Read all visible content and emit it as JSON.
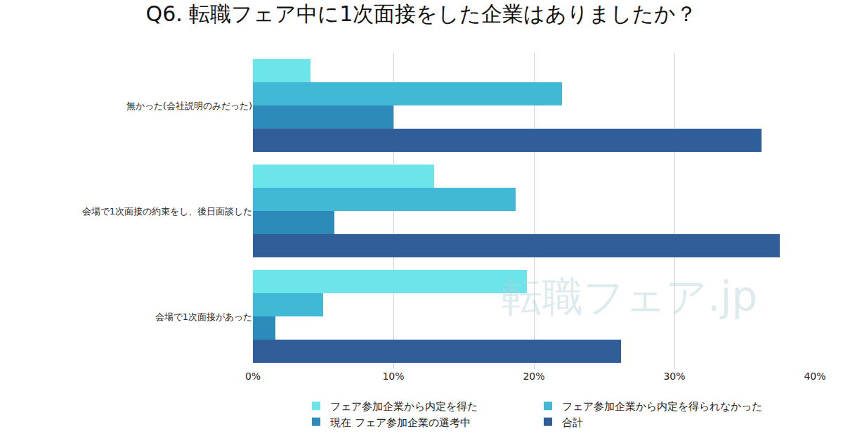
{
  "chart_data": {
    "type": "bar",
    "orientation": "horizontal",
    "title": "Q6. 転職フェア中に1次面接をした企業はありましたか？",
    "categories": [
      "無かった(会社説明のみだった)",
      "会場で1次面接の約束をし、後日面談した",
      "会場で1次面接があった"
    ],
    "series": [
      {
        "name": "フェア参加企業から内定を得た",
        "color": "#6be5e9",
        "values": [
          4.1,
          12.9,
          19.5
        ]
      },
      {
        "name": "フェア参加企業から内定を得られなかった",
        "color": "#41b8d6",
        "values": [
          22.0,
          18.7,
          5.0
        ]
      },
      {
        "name": "現在 フェア参加企業の選考中",
        "color": "#2d8bba",
        "values": [
          10.0,
          5.8,
          1.6
        ]
      },
      {
        "name": "合計",
        "color": "#2f5e98",
        "values": [
          36.2,
          37.5,
          26.2
        ]
      }
    ],
    "xlim": [
      0,
      40
    ],
    "xticks": [
      {
        "value": 0,
        "label": "0%"
      },
      {
        "value": 10,
        "label": "10%"
      },
      {
        "value": 20,
        "label": "20%"
      },
      {
        "value": 30,
        "label": "30%"
      },
      {
        "value": 40,
        "label": "40%"
      }
    ],
    "grid": true,
    "legend": "bottom",
    "data_labels": false,
    "annotations": [
      {
        "text": "転職フェア.jp"
      }
    ]
  }
}
